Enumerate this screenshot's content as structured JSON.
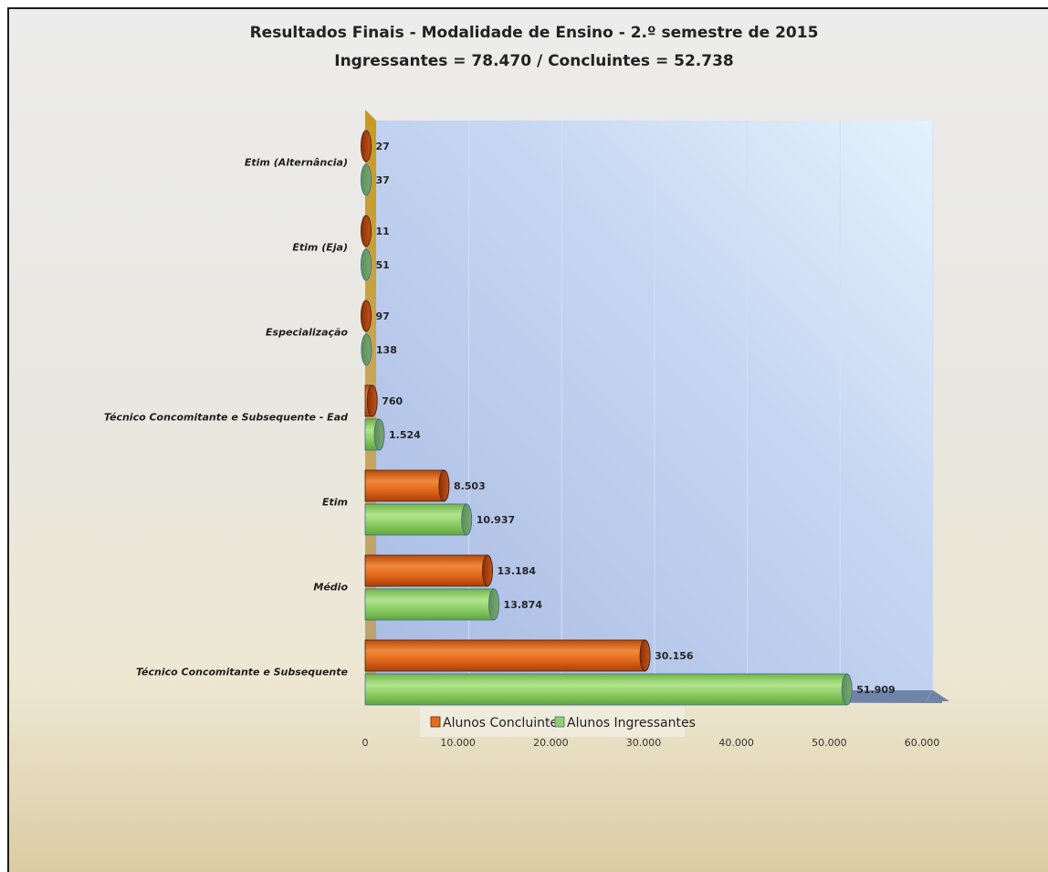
{
  "chart_data": {
    "type": "bar",
    "orientation": "horizontal",
    "title": "Resultados Finais - Modalidade de Ensino - 2.º semestre de 2015",
    "subtitle": "Ingressantes = 78.470 / Concluintes = 52.738",
    "categories": [
      "Etim (Alternância)",
      "Etim (Eja)",
      "Especialização",
      "Técnico  Concomitante e Subsequente - Ead",
      "Etim",
      "Médio",
      "Técnico  Concomitante e Subsequente"
    ],
    "series": [
      {
        "name": "Alunos Concluintes",
        "color": "#e46c1e",
        "values": [
          27,
          11,
          97,
          760,
          8503,
          13184,
          30156
        ],
        "labels": [
          "27",
          "11",
          "97",
          "760",
          "8.503",
          "13.184",
          "30.156"
        ]
      },
      {
        "name": "Alunos Ingressantes",
        "color": "#8fd06a",
        "values": [
          37,
          51,
          138,
          1524,
          10937,
          13874,
          51909
        ],
        "labels": [
          "37",
          "51",
          "138",
          "1.524",
          "10.937",
          "13.874",
          "51.909"
        ]
      }
    ],
    "xlim": [
      0,
      60000
    ],
    "xticks": [
      0,
      10000,
      20000,
      30000,
      40000,
      50000,
      60000
    ],
    "xtick_labels": [
      "0",
      "10.000",
      "20.000",
      "30.000",
      "40.000",
      "50.000",
      "60.000"
    ],
    "grid": true,
    "legend": "bottom",
    "wall_color": "#b9c9ec",
    "side_wall_color": "#c9a13e",
    "floor_color": "#6f84a8"
  }
}
